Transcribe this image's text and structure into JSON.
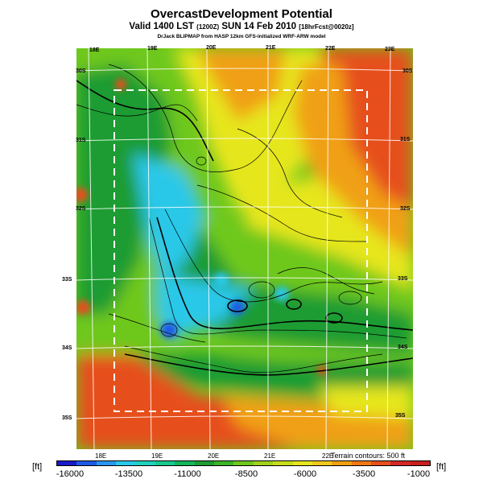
{
  "title": "OvercastDevelopment Potential",
  "subtitle_main": "Valid 1400 LST",
  "subtitle_small1": "(1200Z)",
  "subtitle_day": "SUN 14 Feb 2010",
  "subtitle_small2": "[18hrFcst@0020z]",
  "credit": "DrJack BLIPMAP from HASP 12km GFS-initialized WRF-ARW model",
  "top_lon_labels": [
    "18E",
    "19E",
    "20E",
    "21E",
    "22E",
    "23E"
  ],
  "bottom_lon_labels": [
    "18E",
    "19E",
    "20E",
    "21E",
    "22E"
  ],
  "left_lat_labels": [
    "30S",
    "31S",
    "32S",
    "33S",
    "34S",
    "35S"
  ],
  "right_lat_labels": [
    "30S",
    "31S",
    "32S",
    "33S",
    "34S",
    "35S"
  ],
  "contour_note": "Terrain contours: 500 ft",
  "units": "[ft]",
  "colorbar": {
    "ticks": [
      "-16000",
      "-13500",
      "-11000",
      "-8500",
      "-6000",
      "-3500",
      "-1000"
    ],
    "colors": [
      "#1a1ac8",
      "#1e5ae6",
      "#2896f0",
      "#2ac8e8",
      "#20d2be",
      "#18c88c",
      "#14b45a",
      "#1e9c32",
      "#3cb428",
      "#6ec81e",
      "#a0d21e",
      "#c8dc1e",
      "#e6e61e",
      "#f0c81e",
      "#f0a014",
      "#f07814",
      "#e6501e",
      "#d22828",
      "#c81e1e"
    ]
  },
  "map_colors": {
    "deep_blue": "#1e5ae6",
    "cyan": "#2ac8e8",
    "green": "#1e9c32",
    "light_green": "#6ec81e",
    "yellow": "#e6e61e",
    "orange": "#f0a014",
    "red": "#e6501e"
  }
}
